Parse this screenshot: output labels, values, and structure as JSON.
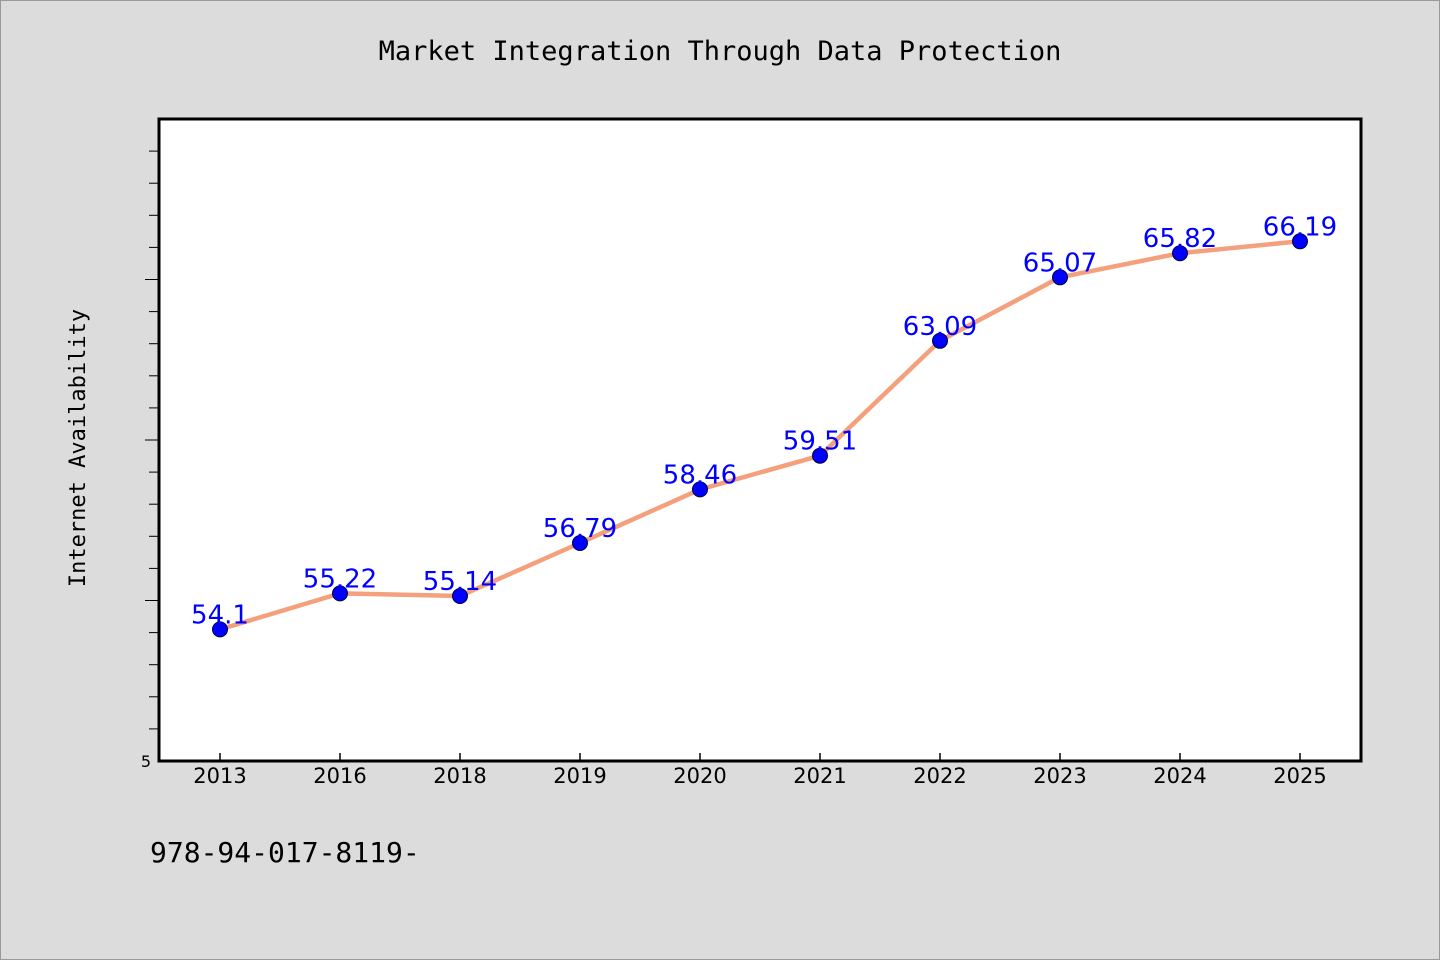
{
  "chart_data": {
    "type": "line",
    "title": "Market Integration Through Data Protection",
    "ylabel": "Internet Availability",
    "xlabel": "",
    "categories": [
      "2013",
      "2016",
      "2018",
      "2019",
      "2020",
      "2021",
      "2022",
      "2023",
      "2024",
      "2025"
    ],
    "series": [
      {
        "values": [
          54.1,
          55.22,
          55.14,
          56.79,
          58.46,
          59.51,
          63.09,
          65.07,
          65.82,
          66.19
        ]
      }
    ],
    "data_labels": [
      "54.1",
      "55.22",
      "55.14",
      "56.79",
      "58.46",
      "59.51",
      "63.09",
      "65.07",
      "65.82",
      "66.19"
    ],
    "ylim": [
      50,
      70
    ],
    "y_tick_labels": [
      "5"
    ],
    "grid": false,
    "legend": "none",
    "footer_text": "978-94-017-8119-",
    "colors": {
      "line": "#f4a07c",
      "marker": "#0000ff",
      "label": "#0000ff",
      "background": "#dcdcdc",
      "plot_background": "#ffffff"
    }
  }
}
